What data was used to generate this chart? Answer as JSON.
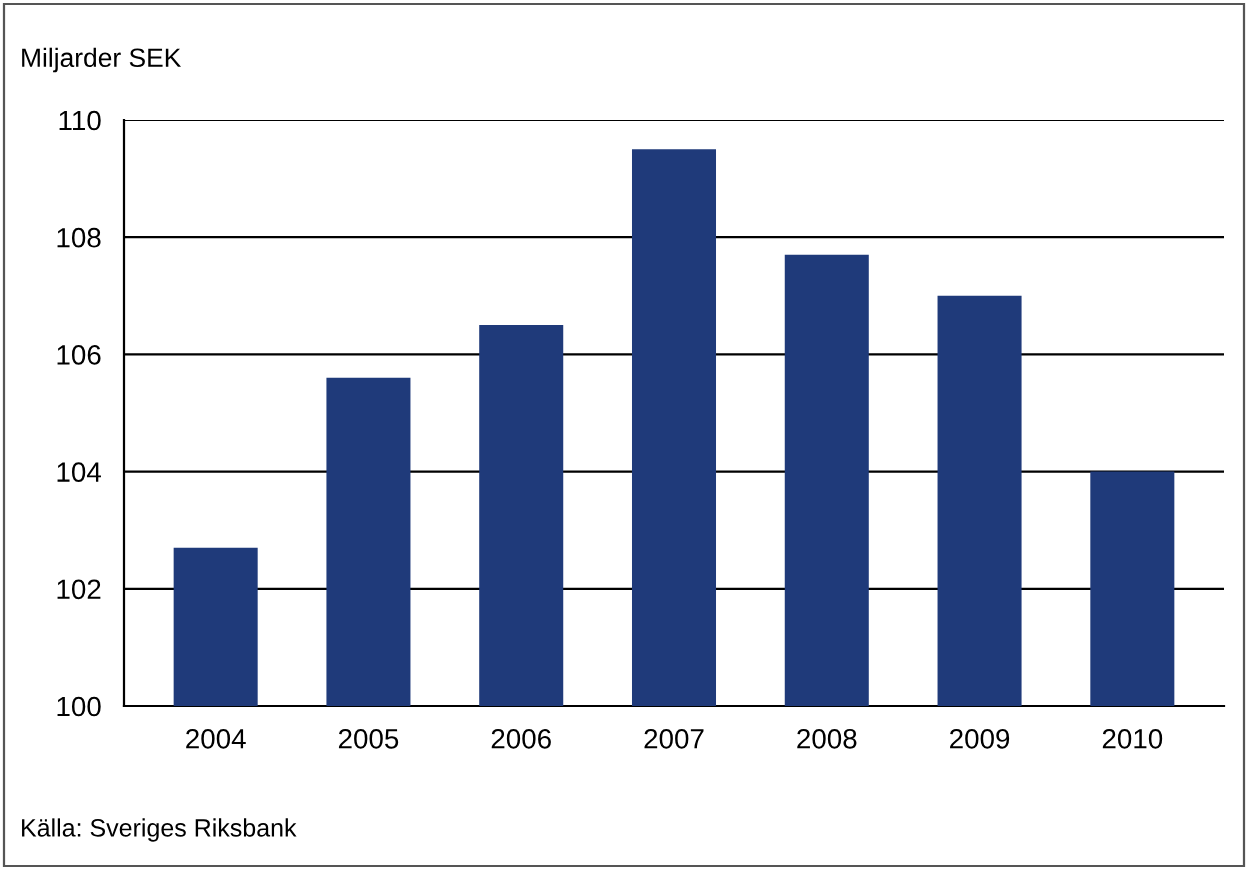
{
  "chart_data": {
    "type": "bar",
    "ylabel": "Miljarder SEK",
    "categories": [
      "2004",
      "2005",
      "2006",
      "2007",
      "2008",
      "2009",
      "2010"
    ],
    "values": [
      102.7,
      105.6,
      106.5,
      109.5,
      107.7,
      107.0,
      104.0
    ],
    "color": "#1f3a7a",
    "ylim": [
      100,
      110
    ],
    "yticks": [
      100,
      102,
      104,
      106,
      108,
      110
    ],
    "grid": "y",
    "annotations": [
      "Källa: Sveriges Riksbank"
    ]
  }
}
